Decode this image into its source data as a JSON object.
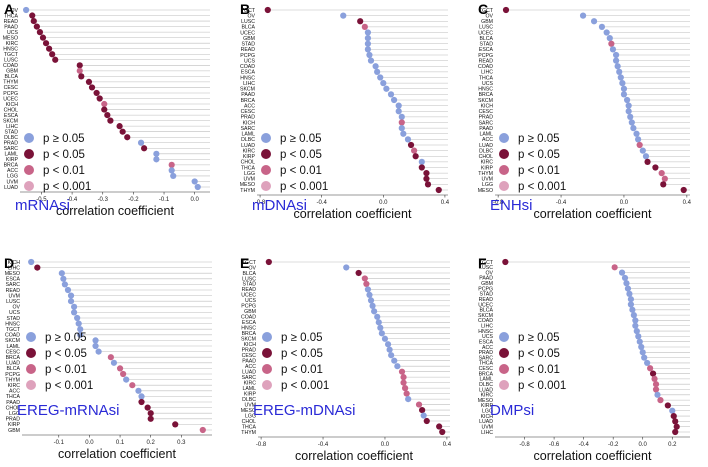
{
  "chart_data": [
    {
      "panel": "A",
      "type": "scatter",
      "title": "mRNAsi",
      "xlabel": "correlation coefficient",
      "xlim": [
        -0.57,
        0.05
      ],
      "xticks": [
        -0.5,
        -0.4,
        -0.3,
        -0.2,
        -0.1,
        0.0
      ],
      "xtick_labels": [
        "-0.5",
        "-0.4",
        "-0.3",
        "-0.2",
        "-0.1",
        "0.0"
      ],
      "categories": [
        "OV",
        "THCA",
        "READ",
        "PAAD",
        "UCS",
        "MESO",
        "KIRC",
        "HNSC",
        "TGCT",
        "LUSC",
        "COAD",
        "GBM",
        "BLCA",
        "THYM",
        "CESC",
        "PCPG",
        "UCEC",
        "KICH",
        "CHOL",
        "ESCA",
        "SKCM",
        "LIHC",
        "STAD",
        "DLBC",
        "PRAD",
        "SARC",
        "LAML",
        "KIRP",
        "BRCA",
        "ACC",
        "LGG",
        "UVM",
        "LUAD"
      ],
      "values": [
        -0.55,
        -0.53,
        -0.525,
        -0.515,
        -0.505,
        -0.495,
        -0.485,
        -0.475,
        -0.465,
        -0.455,
        -0.375,
        -0.375,
        -0.37,
        -0.345,
        -0.335,
        -0.32,
        -0.31,
        -0.295,
        -0.295,
        -0.285,
        -0.275,
        -0.245,
        -0.235,
        -0.22,
        -0.175,
        -0.165,
        -0.125,
        -0.125,
        -0.075,
        -0.075,
        -0.07,
        0.0,
        0.01
      ],
      "significance": [
        "ns",
        "p005",
        "p005",
        "p005",
        "p005",
        "p005",
        "p005",
        "p005",
        "p005",
        "p005",
        "p005",
        "p001",
        "p005",
        "p005",
        "p005",
        "p005",
        "p005",
        "p001",
        "p005",
        "p005",
        "p005",
        "p005",
        "p005",
        "p005",
        "ns",
        "p005",
        "ns",
        "ns",
        "p001",
        "ns",
        "ns",
        "ns",
        "ns"
      ]
    },
    {
      "panel": "B",
      "type": "scatter",
      "title": "mDNAsi",
      "xlabel": "correlation coefficient",
      "xlim": [
        -0.82,
        0.42
      ],
      "xticks": [
        -0.8,
        -0.4,
        0.0,
        0.4
      ],
      "xtick_labels": [
        "-0.8",
        "-0.4",
        "0.0",
        "0.4"
      ],
      "categories": [
        "TGCT",
        "OV",
        "LUSC",
        "BLCA",
        "UCEC",
        "GBM",
        "STAD",
        "READ",
        "PCPG",
        "UCS",
        "COAD",
        "ESCA",
        "HNSC",
        "LIHC",
        "SKCM",
        "PAAD",
        "BRCA",
        "ACC",
        "CESC",
        "PRAD",
        "KICH",
        "SARC",
        "LAML",
        "DLBC",
        "LUAD",
        "KIRC",
        "KIRP",
        "CHOL",
        "THCA",
        "LGG",
        "UVM",
        "MESO",
        "THYM"
      ],
      "values": [
        -0.75,
        -0.26,
        -0.15,
        -0.12,
        -0.1,
        -0.1,
        -0.1,
        -0.1,
        -0.09,
        -0.08,
        -0.05,
        -0.04,
        -0.02,
        0.0,
        0.02,
        0.05,
        0.07,
        0.1,
        0.1,
        0.12,
        0.12,
        0.12,
        0.13,
        0.16,
        0.18,
        0.2,
        0.21,
        0.25,
        0.25,
        0.28,
        0.28,
        0.29,
        0.36
      ],
      "significance": [
        "p005",
        "ns",
        "p005",
        "p001",
        "ns",
        "ns",
        "ns",
        "ns",
        "ns",
        "ns",
        "ns",
        "ns",
        "ns",
        "ns",
        "ns",
        "ns",
        "ns",
        "ns",
        "ns",
        "ns",
        "p001",
        "ns",
        "ns",
        "ns",
        "p005",
        "p001",
        "p005",
        "ns",
        "p005",
        "p005",
        "p005",
        "p005",
        "p005"
      ]
    },
    {
      "panel": "C",
      "type": "scatter",
      "title": "ENHsi",
      "xlabel": "correlation coefficient",
      "xlim": [
        -0.82,
        0.42
      ],
      "xticks": [
        -0.8,
        -0.4,
        0.0,
        0.4
      ],
      "xtick_labels": [
        "-0.8",
        "-0.4",
        "0.0",
        "0.4"
      ],
      "categories": [
        "TGCT",
        "OV",
        "GBM",
        "LUSC",
        "UCEC",
        "BLCA",
        "STAD",
        "ESCA",
        "PCPG",
        "READ",
        "COAD",
        "LIHC",
        "THCA",
        "UCS",
        "HNSC",
        "BRCA",
        "SKCM",
        "KICH",
        "CESC",
        "PRAD",
        "SARC",
        "PAAD",
        "LAML",
        "ACC",
        "LUAD",
        "DLBC",
        "CHOL",
        "KIRC",
        "KIRP",
        "THYM",
        "UVM",
        "LGG",
        "MESO"
      ],
      "values": [
        -0.75,
        -0.26,
        -0.19,
        -0.14,
        -0.11,
        -0.09,
        -0.08,
        -0.07,
        -0.05,
        -0.05,
        -0.04,
        -0.03,
        -0.02,
        -0.01,
        0.0,
        0.0,
        0.02,
        0.03,
        0.03,
        0.04,
        0.05,
        0.06,
        0.08,
        0.09,
        0.1,
        0.12,
        0.14,
        0.15,
        0.2,
        0.24,
        0.26,
        0.25,
        0.38
      ],
      "significance": [
        "p005",
        "ns",
        "ns",
        "ns",
        "ns",
        "ns",
        "p001",
        "ns",
        "ns",
        "ns",
        "ns",
        "ns",
        "ns",
        "ns",
        "ns",
        "ns",
        "ns",
        "ns",
        "ns",
        "ns",
        "ns",
        "ns",
        "ns",
        "ns",
        "p001",
        "ns",
        "ns",
        "p005",
        "p005",
        "p001",
        "p001",
        "p005",
        "p005"
      ]
    },
    {
      "panel": "D",
      "type": "scatter",
      "title": "EREG-mRNAsi",
      "xlabel": "correlation coefficient",
      "xlim": [
        -0.22,
        0.4
      ],
      "xticks": [
        -0.1,
        0.0,
        0.1,
        0.2,
        0.3
      ],
      "xtick_labels": [
        "-0.1",
        "0.0",
        "0.1",
        "0.2",
        "0.3"
      ],
      "categories": [
        "KICH",
        "LIHC",
        "MESO",
        "ESCA",
        "SARC",
        "READ",
        "UVM",
        "LUSC",
        "OV",
        "UCS",
        "STAD",
        "HNSC",
        "TGCT",
        "COAD",
        "SKCM",
        "LAML",
        "CESC",
        "BRCA",
        "LUAD",
        "BLCA",
        "PCPG",
        "THYM",
        "KIRC",
        "ACC",
        "THCA",
        "PAAD",
        "CHOL",
        "LGG",
        "PRAD",
        "KIRP",
        "GBM"
      ],
      "values": [
        -0.19,
        -0.17,
        -0.09,
        -0.085,
        -0.08,
        -0.07,
        -0.06,
        -0.06,
        -0.05,
        -0.05,
        -0.04,
        -0.035,
        -0.03,
        -0.03,
        0.02,
        0.02,
        0.03,
        0.07,
        0.08,
        0.1,
        0.11,
        0.12,
        0.14,
        0.16,
        0.17,
        0.17,
        0.19,
        0.2,
        0.2,
        0.28,
        0.37
      ],
      "significance": [
        "ns",
        "p005",
        "ns",
        "ns",
        "ns",
        "ns",
        "ns",
        "ns",
        "ns",
        "ns",
        "ns",
        "ns",
        "ns",
        "ns",
        "ns",
        "ns",
        "ns",
        "p001",
        "ns",
        "p001",
        "p001",
        "ns",
        "p001",
        "ns",
        "ns",
        "p005",
        "p005",
        "p005",
        "p005",
        "p005",
        "p001"
      ]
    },
    {
      "panel": "E",
      "type": "scatter",
      "title": "EREG-mDNAsi",
      "xlabel": "correlation coefficient",
      "xlim": [
        -0.82,
        0.42
      ],
      "xticks": [
        -0.8,
        -0.4,
        0.0,
        0.4
      ],
      "xtick_labels": [
        "-0.8",
        "-0.4",
        "0.0",
        "0.4"
      ],
      "categories": [
        "TGCT",
        "OV",
        "BLCA",
        "LUSC",
        "STAD",
        "READ",
        "UCEC",
        "UCS",
        "PCPG",
        "GBM",
        "COAD",
        "ESCA",
        "HNSC",
        "BRCA",
        "SKCM",
        "KICH",
        "PRAD",
        "CESC",
        "PAAD",
        "ACC",
        "LUAD",
        "SARC",
        "KIRC",
        "LAML",
        "KIRP",
        "DLBC",
        "UVM",
        "MESO",
        "LGG",
        "CHOL",
        "THCA",
        "THYM"
      ],
      "values": [
        -0.75,
        -0.25,
        -0.17,
        -0.13,
        -0.12,
        -0.11,
        -0.1,
        -0.09,
        -0.08,
        -0.07,
        -0.05,
        -0.04,
        -0.03,
        -0.02,
        0.0,
        0.02,
        0.03,
        0.04,
        0.06,
        0.08,
        0.11,
        0.12,
        0.12,
        0.13,
        0.14,
        0.15,
        0.22,
        0.24,
        0.25,
        0.27,
        0.35,
        0.37
      ],
      "significance": [
        "p005",
        "ns",
        "p005",
        "p001",
        "p001",
        "ns",
        "ns",
        "ns",
        "ns",
        "ns",
        "ns",
        "ns",
        "ns",
        "ns",
        "ns",
        "ns",
        "ns",
        "ns",
        "ns",
        "ns",
        "p001",
        "p001",
        "p001",
        "p001",
        "p001",
        "ns",
        "p001",
        "p005",
        "ns",
        "p005",
        "p005",
        "p005"
      ]
    },
    {
      "panel": "F",
      "type": "scatter",
      "title": "DMPsi",
      "xlabel": "correlation coefficient",
      "xlim": [
        -1.0,
        0.32
      ],
      "xticks": [
        -0.8,
        -0.6,
        -0.4,
        -0.2,
        0.0,
        0.2
      ],
      "xtick_labels": [
        "-0.8",
        "-0.6",
        "-0.4",
        "-0.2",
        "0.0",
        "0.2"
      ],
      "categories": [
        "TGCT",
        "LUSC",
        "OV",
        "PAAD",
        "GBM",
        "PCPG",
        "STAD",
        "READ",
        "UCEC",
        "BLCA",
        "SKCM",
        "COAD",
        "LIHC",
        "HNSC",
        "UCS",
        "ESCA",
        "ACC",
        "PRAD",
        "SARC",
        "THCA",
        "CESC",
        "BRCA",
        "LAML",
        "DLBC",
        "LUAD",
        "KIRC",
        "MESO",
        "KIRP",
        "LGG",
        "KICH",
        "LUAD",
        "UVM",
        "LIHC"
      ],
      "values": [
        -0.93,
        -0.19,
        -0.14,
        -0.12,
        -0.11,
        -0.1,
        -0.09,
        -0.08,
        -0.08,
        -0.07,
        -0.06,
        -0.05,
        -0.05,
        -0.04,
        -0.03,
        -0.02,
        -0.01,
        0.0,
        0.01,
        0.03,
        0.05,
        0.07,
        0.08,
        0.09,
        0.09,
        0.1,
        0.12,
        0.17,
        0.2,
        0.21,
        0.22,
        0.23,
        0.22
      ],
      "significance": [
        "p005",
        "p001",
        "ns",
        "ns",
        "ns",
        "ns",
        "ns",
        "ns",
        "ns",
        "ns",
        "ns",
        "ns",
        "ns",
        "ns",
        "ns",
        "ns",
        "ns",
        "ns",
        "ns",
        "ns",
        "p001",
        "p005",
        "p001",
        "p001",
        "p001",
        "ns",
        "p001",
        "p005",
        "ns",
        "p005",
        "p005",
        "p005",
        "p005"
      ]
    }
  ],
  "legend": {
    "items": [
      {
        "key": "ns",
        "label": "p ≥ 0.05",
        "color": "#8aa0dc"
      },
      {
        "key": "p005",
        "label": "p < 0.05",
        "color": "#7a1238"
      },
      {
        "key": "p001",
        "label": "p < 0.01",
        "color": "#c86488"
      },
      {
        "key": "p0001",
        "label": "p < 0.001",
        "color": "#dea2bc"
      }
    ]
  },
  "colors": {
    "ns": "#8aa0dc",
    "p005": "#7a1238",
    "p001": "#c86488",
    "p0001": "#dea2bc",
    "title": "#2a2ad6"
  }
}
